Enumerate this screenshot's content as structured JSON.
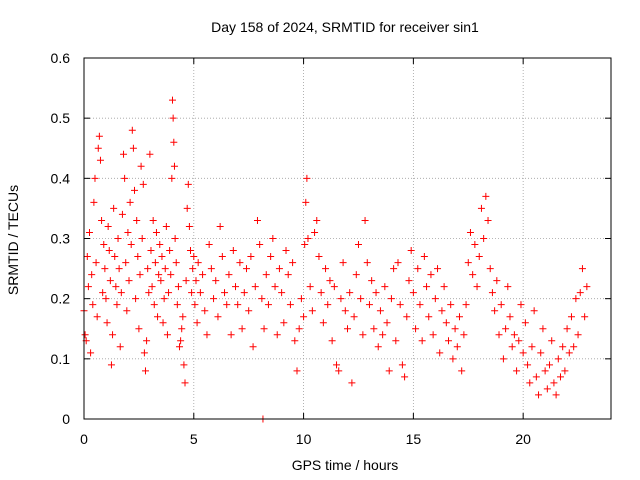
{
  "chart_data": {
    "type": "scatter",
    "title": "Day 158 of 2024, SRMTID for receiver sin1",
    "xlabel": "GPS time / hours",
    "ylabel": "SRMTID / TECUs",
    "xlim": [
      0,
      24
    ],
    "ylim": [
      0,
      0.6
    ],
    "grid": true,
    "marker": "+",
    "color": "#ff0000",
    "xticks": [
      0,
      5,
      10,
      15,
      20
    ],
    "xtick_labels": [
      "0",
      "5",
      "10",
      "15",
      "20"
    ],
    "yticks": [
      0,
      0.1,
      0.2,
      0.3,
      0.4,
      0.5,
      0.6
    ],
    "ytick_labels": [
      "0",
      "0.1",
      "0.2",
      "0.3",
      "0.4",
      "0.5",
      "0.6"
    ],
    "series": [
      {
        "name": "SRMTID",
        "points": [
          [
            0.0,
            0.18
          ],
          [
            0.05,
            0.14
          ],
          [
            0.1,
            0.13
          ],
          [
            0.15,
            0.27
          ],
          [
            0.2,
            0.22
          ],
          [
            0.25,
            0.31
          ],
          [
            0.3,
            0.11
          ],
          [
            0.35,
            0.24
          ],
          [
            0.4,
            0.19
          ],
          [
            0.45,
            0.36
          ],
          [
            0.5,
            0.4
          ],
          [
            0.55,
            0.26
          ],
          [
            0.6,
            0.17
          ],
          [
            0.65,
            0.45
          ],
          [
            0.7,
            0.47
          ],
          [
            0.75,
            0.43
          ],
          [
            0.8,
            0.33
          ],
          [
            0.85,
            0.21
          ],
          [
            0.9,
            0.29
          ],
          [
            0.95,
            0.25
          ],
          [
            1.0,
            0.2
          ],
          [
            1.05,
            0.16
          ],
          [
            1.1,
            0.32
          ],
          [
            1.15,
            0.28
          ],
          [
            1.2,
            0.23
          ],
          [
            1.25,
            0.09
          ],
          [
            1.3,
            0.14
          ],
          [
            1.35,
            0.35
          ],
          [
            1.4,
            0.27
          ],
          [
            1.45,
            0.22
          ],
          [
            1.5,
            0.19
          ],
          [
            1.55,
            0.3
          ],
          [
            1.6,
            0.25
          ],
          [
            1.65,
            0.12
          ],
          [
            1.7,
            0.21
          ],
          [
            1.75,
            0.34
          ],
          [
            1.8,
            0.44
          ],
          [
            1.85,
            0.4
          ],
          [
            1.9,
            0.26
          ],
          [
            1.95,
            0.18
          ],
          [
            2.0,
            0.31
          ],
          [
            2.05,
            0.23
          ],
          [
            2.1,
            0.36
          ],
          [
            2.15,
            0.29
          ],
          [
            2.2,
            0.48
          ],
          [
            2.25,
            0.45
          ],
          [
            2.3,
            0.38
          ],
          [
            2.35,
            0.2
          ],
          [
            2.4,
            0.33
          ],
          [
            2.45,
            0.27
          ],
          [
            2.5,
            0.15
          ],
          [
            2.55,
            0.24
          ],
          [
            2.6,
            0.42
          ],
          [
            2.65,
            0.3
          ],
          [
            2.7,
            0.39
          ],
          [
            2.75,
            0.11
          ],
          [
            2.8,
            0.08
          ],
          [
            2.85,
            0.13
          ],
          [
            2.9,
            0.25
          ],
          [
            2.95,
            0.21
          ],
          [
            3.0,
            0.44
          ],
          [
            3.05,
            0.28
          ],
          [
            3.1,
            0.22
          ],
          [
            3.15,
            0.33
          ],
          [
            3.2,
            0.19
          ],
          [
            3.25,
            0.26
          ],
          [
            3.3,
            0.31
          ],
          [
            3.35,
            0.17
          ],
          [
            3.4,
            0.24
          ],
          [
            3.45,
            0.29
          ],
          [
            3.5,
            0.23
          ],
          [
            3.55,
            0.27
          ],
          [
            3.6,
            0.16
          ],
          [
            3.65,
            0.2
          ],
          [
            3.7,
            0.25
          ],
          [
            3.75,
            0.32
          ],
          [
            3.8,
            0.14
          ],
          [
            3.85,
            0.21
          ],
          [
            3.9,
            0.28
          ],
          [
            3.95,
            0.24
          ],
          [
            4.0,
            0.4
          ],
          [
            4.03,
            0.53
          ],
          [
            4.06,
            0.5
          ],
          [
            4.09,
            0.46
          ],
          [
            4.12,
            0.42
          ],
          [
            4.15,
            0.3
          ],
          [
            4.2,
            0.26
          ],
          [
            4.25,
            0.19
          ],
          [
            4.3,
            0.22
          ],
          [
            4.35,
            0.12
          ],
          [
            4.4,
            0.13
          ],
          [
            4.45,
            0.15
          ],
          [
            4.5,
            0.17
          ],
          [
            4.55,
            0.09
          ],
          [
            4.6,
            0.06
          ],
          [
            4.65,
            0.23
          ],
          [
            4.7,
            0.35
          ],
          [
            4.75,
            0.39
          ],
          [
            4.8,
            0.32
          ],
          [
            4.85,
            0.28
          ],
          [
            4.9,
            0.21
          ],
          [
            4.95,
            0.25
          ],
          [
            5.0,
            0.27
          ],
          [
            5.05,
            0.19
          ],
          [
            5.1,
            0.23
          ],
          [
            5.15,
            0.16
          ],
          [
            5.2,
            0.26
          ],
          [
            5.3,
            0.21
          ],
          [
            5.4,
            0.24
          ],
          [
            5.5,
            0.18
          ],
          [
            5.6,
            0.14
          ],
          [
            5.7,
            0.29
          ],
          [
            5.8,
            0.25
          ],
          [
            5.9,
            0.2
          ],
          [
            6.0,
            0.23
          ],
          [
            6.1,
            0.17
          ],
          [
            6.2,
            0.32
          ],
          [
            6.3,
            0.27
          ],
          [
            6.4,
            0.21
          ],
          [
            6.5,
            0.19
          ],
          [
            6.6,
            0.24
          ],
          [
            6.7,
            0.14
          ],
          [
            6.8,
            0.28
          ],
          [
            6.9,
            0.22
          ],
          [
            7.0,
            0.19
          ],
          [
            7.1,
            0.26
          ],
          [
            7.2,
            0.15
          ],
          [
            7.3,
            0.21
          ],
          [
            7.4,
            0.25
          ],
          [
            7.5,
            0.18
          ],
          [
            7.6,
            0.27
          ],
          [
            7.7,
            0.12
          ],
          [
            7.8,
            0.22
          ],
          [
            7.9,
            0.33
          ],
          [
            8.0,
            0.29
          ],
          [
            8.1,
            0.2
          ],
          [
            8.15,
            0.0
          ],
          [
            8.2,
            0.15
          ],
          [
            8.3,
            0.24
          ],
          [
            8.4,
            0.19
          ],
          [
            8.5,
            0.27
          ],
          [
            8.6,
            0.3
          ],
          [
            8.7,
            0.22
          ],
          [
            8.8,
            0.14
          ],
          [
            8.9,
            0.25
          ],
          [
            9.0,
            0.21
          ],
          [
            9.1,
            0.16
          ],
          [
            9.2,
            0.28
          ],
          [
            9.3,
            0.24
          ],
          [
            9.4,
            0.19
          ],
          [
            9.5,
            0.26
          ],
          [
            9.6,
            0.13
          ],
          [
            9.7,
            0.08
          ],
          [
            9.8,
            0.15
          ],
          [
            9.9,
            0.2
          ],
          [
            10.0,
            0.17
          ],
          [
            10.05,
            0.29
          ],
          [
            10.1,
            0.36
          ],
          [
            10.15,
            0.4
          ],
          [
            10.2,
            0.3
          ],
          [
            10.3,
            0.22
          ],
          [
            10.4,
            0.18
          ],
          [
            10.5,
            0.31
          ],
          [
            10.6,
            0.33
          ],
          [
            10.7,
            0.27
          ],
          [
            10.8,
            0.21
          ],
          [
            10.9,
            0.16
          ],
          [
            11.0,
            0.25
          ],
          [
            11.1,
            0.19
          ],
          [
            11.2,
            0.23
          ],
          [
            11.3,
            0.13
          ],
          [
            11.4,
            0.22
          ],
          [
            11.5,
            0.09
          ],
          [
            11.6,
            0.08
          ],
          [
            11.7,
            0.2
          ],
          [
            11.8,
            0.26
          ],
          [
            11.9,
            0.18
          ],
          [
            12.0,
            0.15
          ],
          [
            12.1,
            0.21
          ],
          [
            12.2,
            0.06
          ],
          [
            12.3,
            0.17
          ],
          [
            12.4,
            0.24
          ],
          [
            12.5,
            0.29
          ],
          [
            12.6,
            0.2
          ],
          [
            12.7,
            0.14
          ],
          [
            12.8,
            0.33
          ],
          [
            12.9,
            0.26
          ],
          [
            13.0,
            0.19
          ],
          [
            13.1,
            0.23
          ],
          [
            13.2,
            0.15
          ],
          [
            13.3,
            0.21
          ],
          [
            13.4,
            0.12
          ],
          [
            13.5,
            0.18
          ],
          [
            13.6,
            0.14
          ],
          [
            13.7,
            0.22
          ],
          [
            13.8,
            0.16
          ],
          [
            13.9,
            0.08
          ],
          [
            14.0,
            0.2
          ],
          [
            14.1,
            0.25
          ],
          [
            14.2,
            0.13
          ],
          [
            14.3,
            0.26
          ],
          [
            14.4,
            0.19
          ],
          [
            14.5,
            0.09
          ],
          [
            14.6,
            0.07
          ],
          [
            14.7,
            0.17
          ],
          [
            14.8,
            0.23
          ],
          [
            14.9,
            0.28
          ],
          [
            15.0,
            0.21
          ],
          [
            15.1,
            0.15
          ],
          [
            15.2,
            0.25
          ],
          [
            15.3,
            0.19
          ],
          [
            15.4,
            0.13
          ],
          [
            15.5,
            0.27
          ],
          [
            15.6,
            0.22
          ],
          [
            15.7,
            0.17
          ],
          [
            15.8,
            0.24
          ],
          [
            15.9,
            0.14
          ],
          [
            16.0,
            0.2
          ],
          [
            16.1,
            0.25
          ],
          [
            16.2,
            0.11
          ],
          [
            16.3,
            0.18
          ],
          [
            16.4,
            0.22
          ],
          [
            16.5,
            0.16
          ],
          [
            16.6,
            0.13
          ],
          [
            16.7,
            0.19
          ],
          [
            16.8,
            0.1
          ],
          [
            16.9,
            0.15
          ],
          [
            17.0,
            0.12
          ],
          [
            17.1,
            0.17
          ],
          [
            17.2,
            0.08
          ],
          [
            17.3,
            0.14
          ],
          [
            17.4,
            0.19
          ],
          [
            17.5,
            0.26
          ],
          [
            17.6,
            0.31
          ],
          [
            17.7,
            0.24
          ],
          [
            17.8,
            0.29
          ],
          [
            17.9,
            0.22
          ],
          [
            18.0,
            0.27
          ],
          [
            18.1,
            0.35
          ],
          [
            18.2,
            0.3
          ],
          [
            18.3,
            0.37
          ],
          [
            18.4,
            0.33
          ],
          [
            18.5,
            0.25
          ],
          [
            18.6,
            0.21
          ],
          [
            18.7,
            0.18
          ],
          [
            18.8,
            0.23
          ],
          [
            18.9,
            0.14
          ],
          [
            19.0,
            0.19
          ],
          [
            19.1,
            0.1
          ],
          [
            19.2,
            0.15
          ],
          [
            19.3,
            0.22
          ],
          [
            19.4,
            0.17
          ],
          [
            19.5,
            0.12
          ],
          [
            19.6,
            0.14
          ],
          [
            19.7,
            0.08
          ],
          [
            19.8,
            0.13
          ],
          [
            19.9,
            0.19
          ],
          [
            20.0,
            0.11
          ],
          [
            20.1,
            0.16
          ],
          [
            20.2,
            0.09
          ],
          [
            20.3,
            0.06
          ],
          [
            20.4,
            0.12
          ],
          [
            20.5,
            0.18
          ],
          [
            20.6,
            0.07
          ],
          [
            20.7,
            0.04
          ],
          [
            20.8,
            0.11
          ],
          [
            20.9,
            0.15
          ],
          [
            21.0,
            0.08
          ],
          [
            21.1,
            0.05
          ],
          [
            21.2,
            0.09
          ],
          [
            21.3,
            0.13
          ],
          [
            21.4,
            0.06
          ],
          [
            21.5,
            0.04
          ],
          [
            21.6,
            0.1
          ],
          [
            21.7,
            0.07
          ],
          [
            21.8,
            0.12
          ],
          [
            21.9,
            0.08
          ],
          [
            22.0,
            0.15
          ],
          [
            22.1,
            0.11
          ],
          [
            22.2,
            0.17
          ],
          [
            22.3,
            0.12
          ],
          [
            22.4,
            0.2
          ],
          [
            22.5,
            0.14
          ],
          [
            22.6,
            0.21
          ],
          [
            22.7,
            0.25
          ],
          [
            22.8,
            0.17
          ],
          [
            22.9,
            0.22
          ]
        ]
      }
    ]
  }
}
